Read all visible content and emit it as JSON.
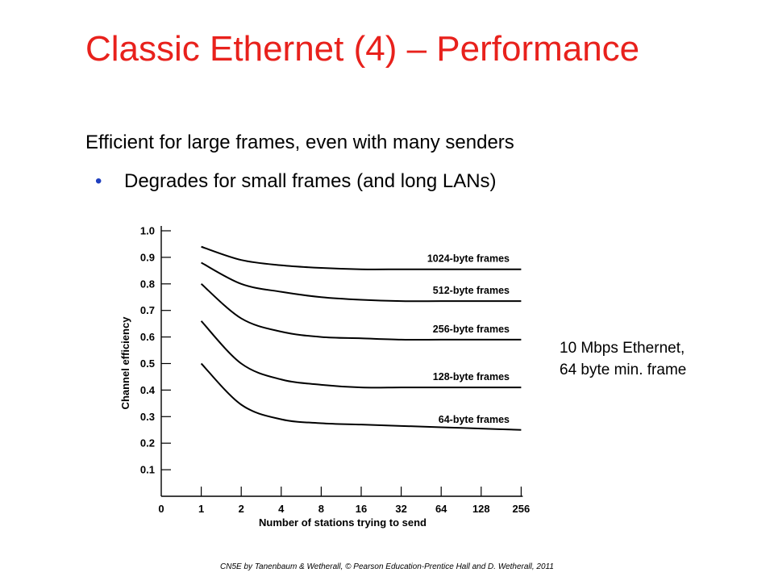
{
  "slide": {
    "title": "Classic Ethernet (4) – Performance",
    "line1": "Efficient for large frames, even with many senders",
    "bullet": "Degrades for small frames (and long LANs)",
    "bullet_symbol": "•",
    "note_lines": [
      "10 Mbps Ethernet,",
      "64 byte min. frame"
    ],
    "footer": "CN5E by Tanenbaum & Wetherall, © Pearson Education-Prentice Hall and D. Wetherall, 2011",
    "colors": {
      "title": "#e8211c",
      "bullet": "#1f3fbf"
    }
  },
  "chart_data": {
    "type": "line",
    "xlabel": "Number of stations trying to send",
    "ylabel": "Channel efficiency",
    "x_scale": "log2",
    "x": [
      1,
      2,
      4,
      8,
      16,
      32,
      64,
      128,
      256
    ],
    "x_tick_labels": [
      "0",
      "1",
      "2",
      "4",
      "8",
      "16",
      "32",
      "64",
      "128",
      "256"
    ],
    "y_tick_labels": [
      "0.1",
      "0.2",
      "0.3",
      "0.4",
      "0.5",
      "0.6",
      "0.7",
      "0.8",
      "0.9",
      "1.0"
    ],
    "ylim": [
      0,
      1.0
    ],
    "grid": false,
    "series": [
      {
        "name": "1024-byte frames",
        "values": [
          0.94,
          0.89,
          0.87,
          0.86,
          0.855,
          0.855,
          0.855,
          0.855,
          0.855
        ]
      },
      {
        "name": "512-byte frames",
        "values": [
          0.88,
          0.8,
          0.77,
          0.75,
          0.74,
          0.735,
          0.735,
          0.735,
          0.735
        ]
      },
      {
        "name": "256-byte frames",
        "values": [
          0.8,
          0.67,
          0.62,
          0.6,
          0.595,
          0.59,
          0.59,
          0.59,
          0.59
        ]
      },
      {
        "name": "128-byte frames",
        "values": [
          0.66,
          0.5,
          0.44,
          0.42,
          0.41,
          0.41,
          0.41,
          0.41,
          0.41
        ]
      },
      {
        "name": "64-byte frames",
        "values": [
          0.5,
          0.345,
          0.29,
          0.275,
          0.27,
          0.265,
          0.26,
          0.255,
          0.25
        ]
      }
    ]
  }
}
